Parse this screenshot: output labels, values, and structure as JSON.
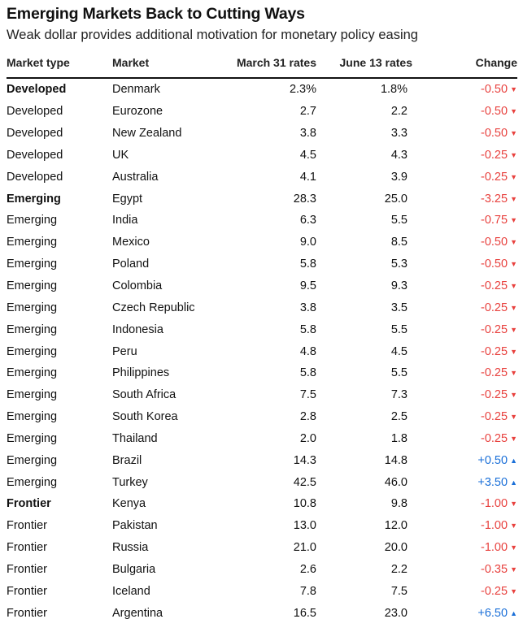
{
  "chart_data": {
    "type": "table",
    "title": "Emerging Markets Back to Cutting Ways",
    "subtitle": "Weak dollar provides additional motivation for monetary policy easing",
    "columns": [
      "Market type",
      "Market",
      "March 31 rates",
      "June 13 rates",
      "Change"
    ],
    "rows": [
      {
        "type": "Developed",
        "market": "Denmark",
        "march": "2.3%",
        "june": "1.8%",
        "change": "-0.50",
        "dir": "down",
        "first": true
      },
      {
        "type": "Developed",
        "market": "Eurozone",
        "march": "2.7",
        "june": "2.2",
        "change": "-0.50",
        "dir": "down"
      },
      {
        "type": "Developed",
        "market": "New Zealand",
        "march": "3.8",
        "june": "3.3",
        "change": "-0.50",
        "dir": "down"
      },
      {
        "type": "Developed",
        "market": "UK",
        "march": "4.5",
        "june": "4.3",
        "change": "-0.25",
        "dir": "down"
      },
      {
        "type": "Developed",
        "market": "Australia",
        "march": "4.1",
        "june": "3.9",
        "change": "-0.25",
        "dir": "down"
      },
      {
        "type": "Emerging",
        "market": "Egypt",
        "march": "28.3",
        "june": "25.0",
        "change": "-3.25",
        "dir": "down",
        "first": true
      },
      {
        "type": "Emerging",
        "market": "India",
        "march": "6.3",
        "june": "5.5",
        "change": "-0.75",
        "dir": "down"
      },
      {
        "type": "Emerging",
        "market": "Mexico",
        "march": "9.0",
        "june": "8.5",
        "change": "-0.50",
        "dir": "down"
      },
      {
        "type": "Emerging",
        "market": "Poland",
        "march": "5.8",
        "june": "5.3",
        "change": "-0.50",
        "dir": "down"
      },
      {
        "type": "Emerging",
        "market": "Colombia",
        "march": "9.5",
        "june": "9.3",
        "change": "-0.25",
        "dir": "down"
      },
      {
        "type": "Emerging",
        "market": "Czech Republic",
        "march": "3.8",
        "june": "3.5",
        "change": "-0.25",
        "dir": "down"
      },
      {
        "type": "Emerging",
        "market": "Indonesia",
        "march": "5.8",
        "june": "5.5",
        "change": "-0.25",
        "dir": "down"
      },
      {
        "type": "Emerging",
        "market": "Peru",
        "march": "4.8",
        "june": "4.5",
        "change": "-0.25",
        "dir": "down"
      },
      {
        "type": "Emerging",
        "market": "Philippines",
        "march": "5.8",
        "june": "5.5",
        "change": "-0.25",
        "dir": "down"
      },
      {
        "type": "Emerging",
        "market": "South Africa",
        "march": "7.5",
        "june": "7.3",
        "change": "-0.25",
        "dir": "down"
      },
      {
        "type": "Emerging",
        "market": "South Korea",
        "march": "2.8",
        "june": "2.5",
        "change": "-0.25",
        "dir": "down"
      },
      {
        "type": "Emerging",
        "market": "Thailand",
        "march": "2.0",
        "june": "1.8",
        "change": "-0.25",
        "dir": "down"
      },
      {
        "type": "Emerging",
        "market": "Brazil",
        "march": "14.3",
        "june": "14.8",
        "change": "+0.50",
        "dir": "up"
      },
      {
        "type": "Emerging",
        "market": "Turkey",
        "march": "42.5",
        "june": "46.0",
        "change": "+3.50",
        "dir": "up"
      },
      {
        "type": "Frontier",
        "market": "Kenya",
        "march": "10.8",
        "june": "9.8",
        "change": "-1.00",
        "dir": "down",
        "first": true
      },
      {
        "type": "Frontier",
        "market": "Pakistan",
        "march": "13.0",
        "june": "12.0",
        "change": "-1.00",
        "dir": "down"
      },
      {
        "type": "Frontier",
        "market": "Russia",
        "march": "21.0",
        "june": "20.0",
        "change": "-1.00",
        "dir": "down"
      },
      {
        "type": "Frontier",
        "market": "Bulgaria",
        "march": "2.6",
        "june": "2.2",
        "change": "-0.35",
        "dir": "down"
      },
      {
        "type": "Frontier",
        "market": "Iceland",
        "march": "7.8",
        "june": "7.5",
        "change": "-0.25",
        "dir": "down"
      },
      {
        "type": "Frontier",
        "market": "Argentina",
        "march": "16.5",
        "june": "23.0",
        "change": "+6.50",
        "dir": "up"
      }
    ]
  },
  "colors": {
    "negative": "#e8413e",
    "positive": "#1a6fd8",
    "text": "#111111"
  },
  "icons": {
    "down": "triangle-down-icon",
    "up": "triangle-up-icon"
  }
}
